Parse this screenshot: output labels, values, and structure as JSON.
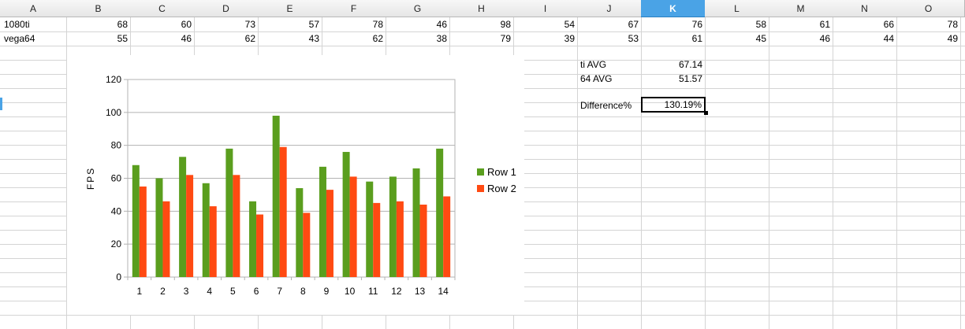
{
  "columns": [
    "A",
    "B",
    "C",
    "D",
    "E",
    "F",
    "G",
    "H",
    "I",
    "J",
    "K",
    "L",
    "M",
    "N",
    "O"
  ],
  "selected_column": "K",
  "rows": [
    {
      "label": "1080ti",
      "values": [
        68,
        60,
        73,
        57,
        78,
        46,
        98,
        54,
        67,
        76,
        58,
        61,
        66,
        78
      ]
    },
    {
      "label": "vega64",
      "values": [
        55,
        46,
        62,
        43,
        62,
        38,
        79,
        39,
        53,
        61,
        45,
        46,
        44,
        49
      ]
    }
  ],
  "summary": {
    "ti_avg_label": "ti AVG",
    "ti_avg_value": "67.14",
    "avg64_label": "64 AVG",
    "avg64_value": "51.57",
    "difference_label": "Difference%",
    "difference_value": "130.19%"
  },
  "colors": {
    "row1": "#5a9e1e",
    "row2": "#ff4a12",
    "selection": "#4aa3e6",
    "grid": "#d4d4d4"
  },
  "chart_data": {
    "type": "bar",
    "categories": [
      "1",
      "2",
      "3",
      "4",
      "5",
      "6",
      "7",
      "8",
      "9",
      "10",
      "11",
      "12",
      "13",
      "14"
    ],
    "series": [
      {
        "name": "Row 1",
        "values": [
          68,
          60,
          73,
          57,
          78,
          46,
          98,
          54,
          67,
          76,
          58,
          61,
          66,
          78
        ]
      },
      {
        "name": "Row 2",
        "values": [
          55,
          46,
          62,
          43,
          62,
          38,
          79,
          39,
          53,
          61,
          45,
          46,
          44,
          49
        ]
      }
    ],
    "title": "",
    "xlabel": "",
    "ylabel": "FPS",
    "ylim": [
      0,
      120
    ],
    "yticks": [
      0,
      20,
      40,
      60,
      80,
      100,
      120
    ],
    "grid": true,
    "legend": "right"
  }
}
